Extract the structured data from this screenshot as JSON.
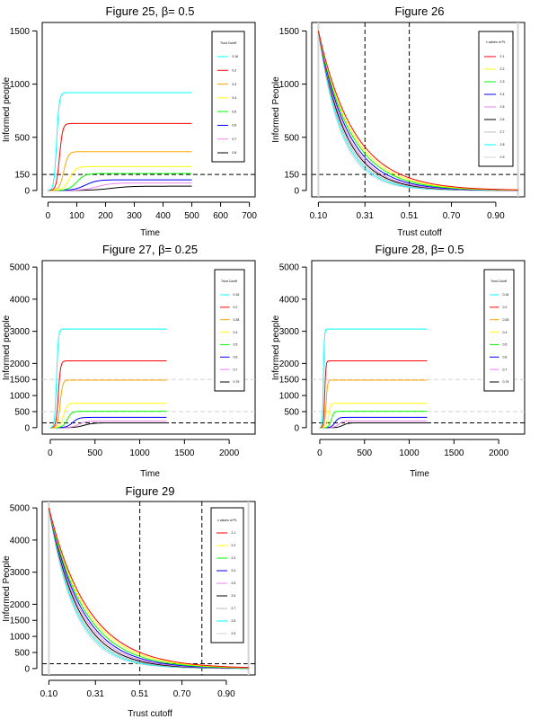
{
  "colors": {
    "cyan": "#00ffff",
    "red": "#ff0000",
    "orange": "#ffa500",
    "yellow": "#ffff00",
    "green": "#00ff00",
    "blue": "#0000ff",
    "violet": "#ee82ee",
    "black": "#000000",
    "gray": "#bebebe",
    "lightgray": "#d3d3d3"
  },
  "chart_data": [
    {
      "id": "fig25",
      "type": "line",
      "title": "Figure 25, β= 0.5",
      "xlabel": "Time",
      "ylabel": "Informed people",
      "xlim": [
        -20,
        720
      ],
      "ylim": [
        -60,
        1580
      ],
      "xticks": [
        0,
        100,
        200,
        300,
        400,
        500,
        600,
        700
      ],
      "yticks": [
        0,
        150,
        500,
        1000,
        1500
      ],
      "hlines": [
        {
          "y": 150,
          "color": "black",
          "dash": true
        }
      ],
      "vlines": [],
      "legend": {
        "title": "Trust Cutoff",
        "position": "top-right",
        "entries": [
          {
            "label": "0.16",
            "color": "cyan"
          },
          {
            "label": "0.2",
            "color": "red"
          },
          {
            "label": "0.3",
            "color": "orange"
          },
          {
            "label": "0.4",
            "color": "yellow"
          },
          {
            "label": "0.5",
            "color": "green"
          },
          {
            "label": "0.6",
            "color": "blue"
          },
          {
            "label": "0.7",
            "color": "violet"
          },
          {
            "label": "0.8",
            "color": "black"
          }
        ]
      },
      "series": [
        {
          "name": "0.16",
          "color": "cyan",
          "kind": "logistic",
          "K": 920,
          "t0": 30,
          "r": 0.22,
          "xmax": 500
        },
        {
          "name": "0.2",
          "color": "red",
          "kind": "logistic",
          "K": 630,
          "t0": 40,
          "r": 0.18,
          "xmax": 500
        },
        {
          "name": "0.3",
          "color": "orange",
          "kind": "logistic",
          "K": 365,
          "t0": 55,
          "r": 0.13,
          "xmax": 500
        },
        {
          "name": "0.4",
          "color": "yellow",
          "kind": "logistic",
          "K": 225,
          "t0": 75,
          "r": 0.09,
          "xmax": 500
        },
        {
          "name": "0.5",
          "color": "green",
          "kind": "logistic",
          "K": 160,
          "t0": 100,
          "r": 0.07,
          "xmax": 500
        },
        {
          "name": "0.6",
          "color": "blue",
          "kind": "logistic",
          "K": 100,
          "t0": 130,
          "r": 0.05,
          "xmax": 500
        },
        {
          "name": "0.7",
          "color": "violet",
          "kind": "logistic",
          "K": 70,
          "t0": 170,
          "r": 0.04,
          "xmax": 500
        },
        {
          "name": "0.8",
          "color": "black",
          "kind": "logistic",
          "K": 40,
          "t0": 220,
          "r": 0.03,
          "xmax": 500
        }
      ]
    },
    {
      "id": "fig26",
      "type": "line",
      "title": "Figure 26",
      "xlabel": "Trust cutoff",
      "ylabel": "Informed People",
      "xlim": [
        0.07,
        1.03
      ],
      "ylim": [
        -60,
        1580
      ],
      "xticks": [
        0.1,
        0.31,
        0.51,
        0.7,
        0.9
      ],
      "xtick_labels": [
        "0.10",
        "0.31",
        "0.51",
        "0.70",
        "0.90"
      ],
      "yticks": [
        0,
        150,
        500,
        1000,
        1500
      ],
      "hlines": [
        {
          "y": 150,
          "color": "black",
          "dash": true
        }
      ],
      "vlines": [
        {
          "x": 0.31,
          "color": "black",
          "dash": true
        },
        {
          "x": 0.51,
          "color": "black",
          "dash": true
        },
        {
          "x": 0.1,
          "color": "lightgray",
          "dash": false
        },
        {
          "x": 1.0,
          "color": "lightgray",
          "dash": false
        }
      ],
      "legend": {
        "title": "ε values of PL",
        "position": "top-right",
        "entries": [
          {
            "label": "2.1",
            "color": "red"
          },
          {
            "label": "2.2",
            "color": "yellow"
          },
          {
            "label": "2.3",
            "color": "green"
          },
          {
            "label": "2.4",
            "color": "blue"
          },
          {
            "label": "2.5",
            "color": "violet"
          },
          {
            "label": "2.6",
            "color": "black"
          },
          {
            "label": "2.7",
            "color": "gray"
          },
          {
            "label": "2.8",
            "color": "cyan"
          },
          {
            "label": "2.9",
            "color": "lightgray"
          }
        ]
      },
      "series": [
        {
          "name": "2.1",
          "color": "red",
          "kind": "decay",
          "x0": 0.1,
          "x1": 1.0,
          "y0": 1500,
          "k": 6.2
        },
        {
          "name": "2.2",
          "color": "yellow",
          "kind": "decay",
          "x0": 0.1,
          "x1": 1.0,
          "y0": 1500,
          "k": 6.6
        },
        {
          "name": "2.3",
          "color": "green",
          "kind": "decay",
          "x0": 0.1,
          "x1": 1.0,
          "y0": 1500,
          "k": 7.0
        },
        {
          "name": "2.4",
          "color": "blue",
          "kind": "decay",
          "x0": 0.1,
          "x1": 1.0,
          "y0": 1500,
          "k": 7.5
        },
        {
          "name": "2.5",
          "color": "violet",
          "kind": "decay",
          "x0": 0.1,
          "x1": 1.0,
          "y0": 1500,
          "k": 8.0
        },
        {
          "name": "2.6",
          "color": "black",
          "kind": "decay",
          "x0": 0.1,
          "x1": 1.0,
          "y0": 1500,
          "k": 8.4
        },
        {
          "name": "2.7",
          "color": "gray",
          "kind": "decay",
          "x0": 0.1,
          "x1": 1.0,
          "y0": 1500,
          "k": 8.9
        },
        {
          "name": "2.8",
          "color": "cyan",
          "kind": "decay",
          "x0": 0.1,
          "x1": 1.0,
          "y0": 1500,
          "k": 9.4
        },
        {
          "name": "2.9",
          "color": "lightgray",
          "kind": "decay",
          "x0": 0.1,
          "x1": 1.0,
          "y0": 1500,
          "k": 9.9
        }
      ]
    },
    {
      "id": "fig27",
      "type": "line",
      "title": "Figure 27, β= 0.25",
      "xlabel": "Time",
      "ylabel": "Informed people",
      "xlim": [
        -90,
        2290
      ],
      "ylim": [
        -200,
        5200
      ],
      "xticks": [
        0,
        500,
        1000,
        1500,
        2000
      ],
      "yticks": [
        0,
        500,
        1000,
        1500,
        2000,
        3000,
        4000,
        5000
      ],
      "hlines": [
        {
          "y": 150,
          "color": "black",
          "dash": true
        },
        {
          "y": 1500,
          "color": "lightgray",
          "dash": true
        },
        {
          "y": 500,
          "color": "lightgray",
          "dash": true
        }
      ],
      "vlines": [],
      "legend": {
        "title": "Trust Cutoff",
        "position": "top-right",
        "entries": [
          {
            "label": "0.16",
            "color": "cyan"
          },
          {
            "label": "0.2",
            "color": "red"
          },
          {
            "label": "0.28",
            "color": "orange"
          },
          {
            "label": "0.4",
            "color": "yellow"
          },
          {
            "label": "0.5",
            "color": "green"
          },
          {
            "label": "0.6",
            "color": "blue"
          },
          {
            "label": "0.7",
            "color": "violet"
          },
          {
            "label": "0.79",
            "color": "black"
          }
        ]
      },
      "series": [
        {
          "name": "0.16",
          "color": "cyan",
          "kind": "logistic",
          "K": 3070,
          "t0": 70,
          "r": 0.1,
          "xmax": 1300
        },
        {
          "name": "0.2",
          "color": "red",
          "kind": "logistic",
          "K": 2080,
          "t0": 90,
          "r": 0.08,
          "xmax": 1300
        },
        {
          "name": "0.28",
          "color": "orange",
          "kind": "logistic",
          "K": 1480,
          "t0": 110,
          "r": 0.07,
          "xmax": 1300
        },
        {
          "name": "0.4",
          "color": "yellow",
          "kind": "logistic",
          "K": 760,
          "t0": 150,
          "r": 0.05,
          "xmax": 1300
        },
        {
          "name": "0.5",
          "color": "green",
          "kind": "logistic",
          "K": 510,
          "t0": 190,
          "r": 0.04,
          "xmax": 1300
        },
        {
          "name": "0.6",
          "color": "blue",
          "kind": "logistic",
          "K": 320,
          "t0": 250,
          "r": 0.03,
          "xmax": 1300
        },
        {
          "name": "0.7",
          "color": "violet",
          "kind": "logistic",
          "K": 210,
          "t0": 320,
          "r": 0.025,
          "xmax": 1300
        },
        {
          "name": "0.79",
          "color": "black",
          "kind": "logistic",
          "K": 150,
          "t0": 380,
          "r": 0.02,
          "xmax": 1300
        }
      ]
    },
    {
      "id": "fig28",
      "type": "line",
      "title": "Figure 28, β= 0.5",
      "xlabel": "Time",
      "ylabel": "Informed people",
      "xlim": [
        -90,
        2290
      ],
      "ylim": [
        -200,
        5200
      ],
      "xticks": [
        0,
        500,
        1000,
        1500,
        2000
      ],
      "yticks": [
        0,
        500,
        1000,
        1500,
        2000,
        3000,
        4000,
        5000
      ],
      "hlines": [
        {
          "y": 150,
          "color": "black",
          "dash": true
        },
        {
          "y": 1500,
          "color": "lightgray",
          "dash": true
        },
        {
          "y": 500,
          "color": "lightgray",
          "dash": true
        }
      ],
      "vlines": [],
      "legend": {
        "title": "Trust Cutoff",
        "position": "top-right",
        "entries": [
          {
            "label": "0.16",
            "color": "cyan"
          },
          {
            "label": "0.2",
            "color": "red"
          },
          {
            "label": "0.28",
            "color": "orange"
          },
          {
            "label": "0.4",
            "color": "yellow"
          },
          {
            "label": "0.5",
            "color": "green"
          },
          {
            "label": "0.6",
            "color": "blue"
          },
          {
            "label": "0.7",
            "color": "violet"
          },
          {
            "label": "0.79",
            "color": "black"
          }
        ]
      },
      "series": [
        {
          "name": "0.16",
          "color": "cyan",
          "kind": "logistic",
          "K": 3070,
          "t0": 40,
          "r": 0.18,
          "xmax": 1200
        },
        {
          "name": "0.2",
          "color": "red",
          "kind": "logistic",
          "K": 2080,
          "t0": 55,
          "r": 0.15,
          "xmax": 1200
        },
        {
          "name": "0.28",
          "color": "orange",
          "kind": "logistic",
          "K": 1480,
          "t0": 70,
          "r": 0.12,
          "xmax": 1200
        },
        {
          "name": "0.4",
          "color": "yellow",
          "kind": "logistic",
          "K": 760,
          "t0": 100,
          "r": 0.09,
          "xmax": 1200
        },
        {
          "name": "0.5",
          "color": "green",
          "kind": "logistic",
          "K": 510,
          "t0": 130,
          "r": 0.07,
          "xmax": 1200
        },
        {
          "name": "0.6",
          "color": "blue",
          "kind": "logistic",
          "K": 320,
          "t0": 170,
          "r": 0.05,
          "xmax": 1200
        },
        {
          "name": "0.7",
          "color": "violet",
          "kind": "logistic",
          "K": 210,
          "t0": 210,
          "r": 0.04,
          "xmax": 1200
        },
        {
          "name": "0.79",
          "color": "black",
          "kind": "logistic",
          "K": 150,
          "t0": 260,
          "r": 0.035,
          "xmax": 1200
        }
      ]
    },
    {
      "id": "fig29",
      "type": "line",
      "title": "Figure 29",
      "xlabel": "Trust cutoff",
      "ylabel": "Informed People",
      "xlim": [
        0.07,
        1.03
      ],
      "ylim": [
        -200,
        5200
      ],
      "xticks": [
        0.1,
        0.31,
        0.51,
        0.7,
        0.9
      ],
      "xtick_labels": [
        "0.10",
        "0.31",
        "0.51",
        "0.70",
        "0.90"
      ],
      "yticks": [
        0,
        500,
        1000,
        1500,
        2000,
        3000,
        4000,
        5000
      ],
      "hlines": [
        {
          "y": 150,
          "color": "black",
          "dash": true
        }
      ],
      "vlines": [
        {
          "x": 0.51,
          "color": "black",
          "dash": true
        },
        {
          "x": 0.79,
          "color": "black",
          "dash": true
        },
        {
          "x": 0.1,
          "color": "lightgray",
          "dash": false
        },
        {
          "x": 1.0,
          "color": "lightgray",
          "dash": false
        }
      ],
      "legend": {
        "title": "ε values of PL",
        "position": "top-right",
        "entries": [
          {
            "label": "2.1",
            "color": "red"
          },
          {
            "label": "2.2",
            "color": "yellow"
          },
          {
            "label": "2.3",
            "color": "green"
          },
          {
            "label": "2.4",
            "color": "blue"
          },
          {
            "label": "2.5",
            "color": "violet"
          },
          {
            "label": "2.6",
            "color": "black"
          },
          {
            "label": "2.7",
            "color": "gray"
          },
          {
            "label": "2.8",
            "color": "cyan"
          },
          {
            "label": "2.9",
            "color": "lightgray"
          }
        ]
      },
      "series": [
        {
          "name": "2.1",
          "color": "red",
          "kind": "decay",
          "x0": 0.1,
          "x1": 1.0,
          "y0": 5000,
          "k": 5.6
        },
        {
          "name": "2.2",
          "color": "yellow",
          "kind": "decay",
          "x0": 0.1,
          "x1": 1.0,
          "y0": 5000,
          "k": 5.9
        },
        {
          "name": "2.3",
          "color": "green",
          "kind": "decay",
          "x0": 0.1,
          "x1": 1.0,
          "y0": 5000,
          "k": 6.3
        },
        {
          "name": "2.4",
          "color": "blue",
          "kind": "decay",
          "x0": 0.1,
          "x1": 1.0,
          "y0": 5000,
          "k": 6.7
        },
        {
          "name": "2.5",
          "color": "violet",
          "kind": "decay",
          "x0": 0.1,
          "x1": 1.0,
          "y0": 5000,
          "k": 7.1
        },
        {
          "name": "2.6",
          "color": "black",
          "kind": "decay",
          "x0": 0.1,
          "x1": 1.0,
          "y0": 5000,
          "k": 7.5
        },
        {
          "name": "2.7",
          "color": "gray",
          "kind": "decay",
          "x0": 0.1,
          "x1": 1.0,
          "y0": 5000,
          "k": 7.9
        },
        {
          "name": "2.8",
          "color": "cyan",
          "kind": "decay",
          "x0": 0.1,
          "x1": 1.0,
          "y0": 5000,
          "k": 8.3
        },
        {
          "name": "2.9",
          "color": "lightgray",
          "kind": "decay",
          "x0": 0.1,
          "x1": 1.0,
          "y0": 5000,
          "k": 8.7
        }
      ]
    }
  ]
}
